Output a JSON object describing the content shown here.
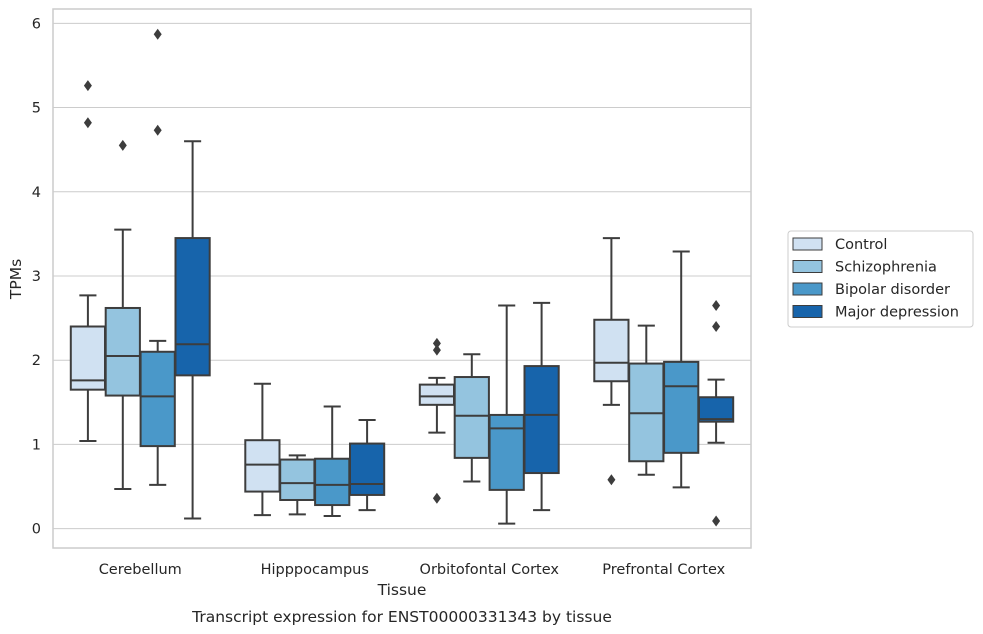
{
  "caption": "Transcript expression for ENST00000331343 by tissue",
  "chart_data": {
    "type": "box",
    "xlabel": "Tissue",
    "ylabel": "TPMs",
    "ylim": [
      -0.23,
      6.17
    ],
    "yticks": [
      0,
      1,
      2,
      3,
      4,
      5,
      6
    ],
    "grid": true,
    "legend_position": "right",
    "categories": [
      "Cerebellum",
      "Hipppocampus",
      "Orbitofontal Cortex",
      "Prefrontal Cortex"
    ],
    "series": [
      {
        "name": "Control",
        "color": "#d0e1f2",
        "boxes": [
          {
            "whislo": 1.04,
            "q1": 1.65,
            "med": 1.76,
            "q3": 2.4,
            "whishi": 2.77,
            "fliers": [
              4.82,
              5.26
            ]
          },
          {
            "whislo": 0.16,
            "q1": 0.44,
            "med": 0.76,
            "q3": 1.05,
            "whishi": 1.72,
            "fliers": []
          },
          {
            "whislo": 1.14,
            "q1": 1.47,
            "med": 1.57,
            "q3": 1.71,
            "whishi": 1.79,
            "fliers": [
              0.36,
              2.12,
              2.2
            ]
          },
          {
            "whislo": 1.47,
            "q1": 1.75,
            "med": 1.97,
            "q3": 2.48,
            "whishi": 3.45,
            "fliers": [
              0.58
            ]
          }
        ]
      },
      {
        "name": "Schizophrenia",
        "color": "#94c4df",
        "boxes": [
          {
            "whislo": 0.47,
            "q1": 1.58,
            "med": 2.05,
            "q3": 2.62,
            "whishi": 3.55,
            "fliers": [
              4.55
            ]
          },
          {
            "whislo": 0.17,
            "q1": 0.34,
            "med": 0.54,
            "q3": 0.82,
            "whishi": 0.87,
            "fliers": []
          },
          {
            "whislo": 0.56,
            "q1": 0.84,
            "med": 1.34,
            "q3": 1.8,
            "whishi": 2.07,
            "fliers": []
          },
          {
            "whislo": 0.64,
            "q1": 0.8,
            "med": 1.37,
            "q3": 1.96,
            "whishi": 2.41,
            "fliers": []
          }
        ]
      },
      {
        "name": "Bipolar disorder",
        "color": "#4a98c9",
        "boxes": [
          {
            "whislo": 0.52,
            "q1": 0.98,
            "med": 1.57,
            "q3": 2.1,
            "whishi": 2.23,
            "fliers": [
              4.73,
              5.87
            ]
          },
          {
            "whislo": 0.15,
            "q1": 0.28,
            "med": 0.52,
            "q3": 0.83,
            "whishi": 1.45,
            "fliers": []
          },
          {
            "whislo": 0.06,
            "q1": 0.46,
            "med": 1.19,
            "q3": 1.35,
            "whishi": 2.65,
            "fliers": []
          },
          {
            "whislo": 0.49,
            "q1": 0.9,
            "med": 1.69,
            "q3": 1.98,
            "whishi": 3.29,
            "fliers": []
          }
        ]
      },
      {
        "name": "Major depression",
        "color": "#1764ab",
        "boxes": [
          {
            "whislo": 0.12,
            "q1": 1.82,
            "med": 2.19,
            "q3": 3.45,
            "whishi": 4.6,
            "fliers": []
          },
          {
            "whislo": 0.22,
            "q1": 0.4,
            "med": 0.53,
            "q3": 1.01,
            "whishi": 1.29,
            "fliers": []
          },
          {
            "whislo": 0.22,
            "q1": 0.66,
            "med": 1.35,
            "q3": 1.93,
            "whishi": 2.68,
            "fliers": []
          },
          {
            "whislo": 1.02,
            "q1": 1.27,
            "med": 1.3,
            "q3": 1.56,
            "whishi": 1.77,
            "fliers": [
              0.09,
              2.4,
              2.65
            ]
          }
        ]
      }
    ]
  }
}
